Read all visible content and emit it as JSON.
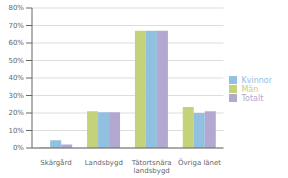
{
  "chart_data": {
    "type": "bar",
    "categories": [
      "Skärgård",
      "Landsbygd",
      "Tätortsnära\nlandsbygd",
      "Övriga länet"
    ],
    "series": [
      {
        "name": "Män",
        "color": "#c4d27a",
        "values": [
          0.5,
          21.0,
          67.0,
          23.5
        ]
      },
      {
        "name": "Kvinnor",
        "color": "#92c0e0",
        "values": [
          4.5,
          20.5,
          67.0,
          20.0
        ]
      },
      {
        "name": "Totalt",
        "color": "#b3a8d0",
        "values": [
          2.0,
          20.5,
          67.0,
          21.0
        ]
      }
    ],
    "ylim": [
      0,
      80
    ],
    "yticks": [
      {
        "value": 0,
        "label": "0%"
      },
      {
        "value": 10,
        "label": "10%"
      },
      {
        "value": 20,
        "label": "20%"
      },
      {
        "value": 30,
        "label": "30%"
      },
      {
        "value": 40,
        "label": "40%"
      },
      {
        "value": 50,
        "label": "50%"
      },
      {
        "value": 60,
        "label": "60%"
      },
      {
        "value": 70,
        "label": "70%"
      },
      {
        "value": 80,
        "label": "80%"
      }
    ],
    "grid": true,
    "legend": "right"
  }
}
